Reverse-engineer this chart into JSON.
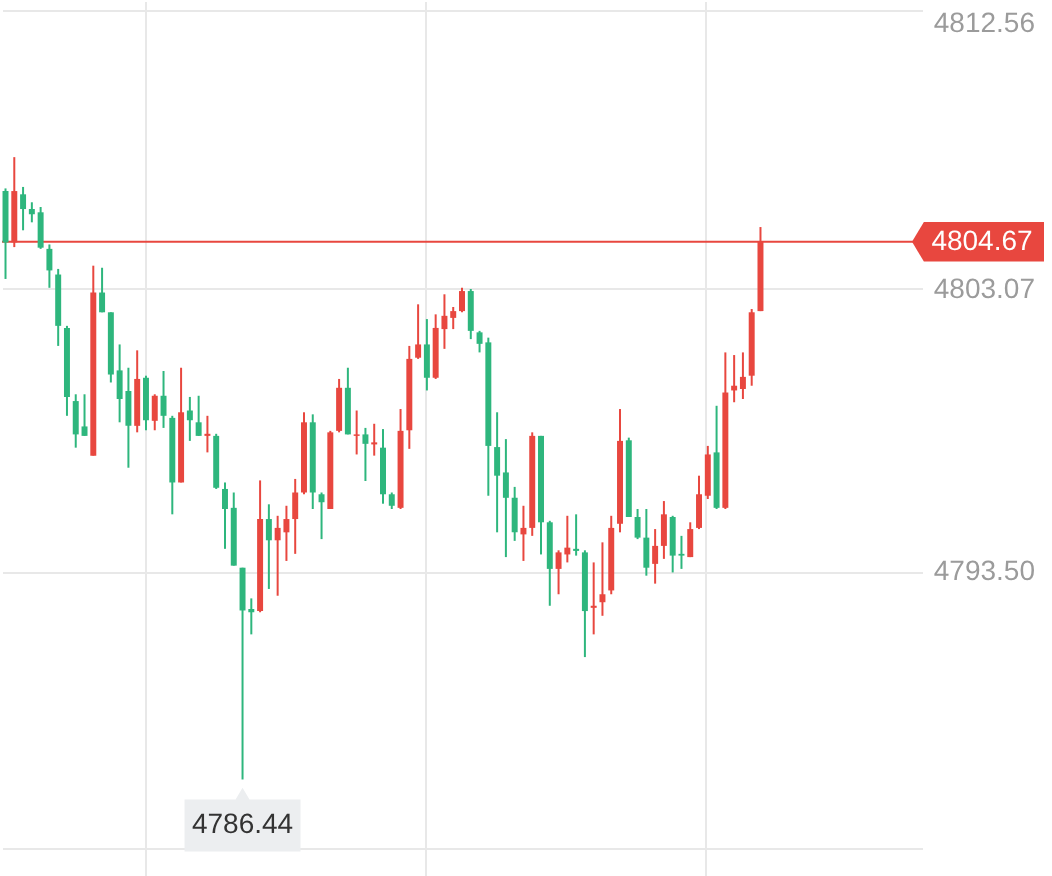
{
  "chart_data": {
    "type": "candlestick",
    "categories": [
      null,
      null,
      null,
      null,
      null,
      null,
      null,
      null,
      null,
      null,
      null,
      null,
      null,
      null,
      null,
      null,
      null,
      null,
      null,
      null,
      null,
      null,
      null,
      null,
      null,
      null,
      null,
      null,
      null,
      null,
      null,
      null,
      null,
      null,
      null,
      null,
      null,
      null,
      null,
      null,
      null,
      null,
      null,
      null,
      null,
      null,
      null,
      null,
      null,
      null,
      null,
      null,
      null,
      null,
      null,
      null,
      null,
      null,
      null,
      null,
      null,
      null,
      null,
      null,
      null,
      null,
      null,
      null,
      null,
      null,
      null,
      null,
      null,
      null,
      null,
      null,
      null,
      null,
      null,
      null,
      null,
      null,
      null,
      null,
      null,
      null,
      null,
      null,
      null,
      null,
      null,
      null,
      null,
      null,
      null,
      null,
      null,
      null,
      null,
      null,
      null,
      null,
      null,
      null,
      null
    ],
    "ohlc": [
      [
        4806.39,
        4806.48,
        4803.41,
        4804.65
      ],
      [
        4804.65,
        4807.54,
        4804.49,
        4806.39
      ],
      [
        4806.28,
        4806.53,
        4805.06,
        4805.78
      ],
      [
        4805.78,
        4806.01,
        4805.33,
        4805.6
      ],
      [
        4805.67,
        4805.85,
        4804.43,
        4804.47
      ],
      [
        4804.43,
        4804.58,
        4803.11,
        4803.7
      ],
      [
        4803.56,
        4803.75,
        4801.14,
        4801.82
      ],
      [
        4801.75,
        4801.82,
        4798.77,
        4799.41
      ],
      [
        4799.27,
        4799.5,
        4797.69,
        4798.14
      ],
      [
        4798.41,
        4799.5,
        4798.09,
        4798.09
      ],
      [
        4797.42,
        4803.86,
        4797.42,
        4802.95
      ],
      [
        4802.95,
        4803.79,
        4802.28,
        4802.28
      ],
      [
        4802.28,
        4802.28,
        4799.9,
        4800.17
      ],
      [
        4800.31,
        4801.19,
        4798.55,
        4799.34
      ],
      [
        4799.61,
        4800.4,
        4797.01,
        4798.43
      ],
      [
        4798.43,
        4800.99,
        4798.21,
        4800.02
      ],
      [
        4800.06,
        4800.13,
        4798.28,
        4798.62
      ],
      [
        4798.6,
        4799.5,
        4798.28,
        4799.45
      ],
      [
        4799.45,
        4800.29,
        4798.36,
        4798.77
      ],
      [
        4798.7,
        4798.77,
        4795.43,
        4796.51
      ],
      [
        4796.51,
        4800.4,
        4796.51,
        4798.89
      ],
      [
        4798.95,
        4799.41,
        4797.92,
        4798.62
      ],
      [
        4798.55,
        4799.45,
        4798.09,
        4798.09
      ],
      [
        4798.09,
        4798.77,
        4797.53,
        4798.16
      ],
      [
        4798.09,
        4798.16,
        4796.29,
        4796.33
      ],
      [
        4796.29,
        4796.51,
        4794.26,
        4795.61
      ],
      [
        4795.65,
        4796.17,
        4793.69,
        4793.69
      ],
      [
        4793.62,
        4793.62,
        4786.44,
        4792.17
      ],
      [
        4792.22,
        4792.58,
        4791.36,
        4792.11
      ],
      [
        4792.15,
        4796.58,
        4792.11,
        4795.27
      ],
      [
        4795.27,
        4795.77,
        4792.9,
        4794.55
      ],
      [
        4794.55,
        4795.38,
        4792.67,
        4794.97
      ],
      [
        4794.82,
        4795.72,
        4793.85,
        4795.27
      ],
      [
        4795.27,
        4796.63,
        4794.09,
        4796.17
      ],
      [
        4796.17,
        4798.89,
        4796.11,
        4798.55
      ],
      [
        4798.55,
        4798.82,
        4795.61,
        4796.17
      ],
      [
        4796.11,
        4796.17,
        4794.59,
        4795.84
      ],
      [
        4795.61,
        4798.26,
        4795.61,
        4798.21
      ],
      [
        4798.26,
        4800.02,
        4798.21,
        4799.72
      ],
      [
        4799.72,
        4800.4,
        4798.14,
        4798.14
      ],
      [
        4798.09,
        4798.95,
        4797.46,
        4798.14
      ],
      [
        4798.14,
        4798.36,
        4796.56,
        4797.82
      ],
      [
        4797.8,
        4798.5,
        4797.42,
        4797.87
      ],
      [
        4797.69,
        4798.32,
        4795.79,
        4796.11
      ],
      [
        4796.11,
        4796.17,
        4795.61,
        4795.72
      ],
      [
        4795.65,
        4799.0,
        4795.61,
        4798.26
      ],
      [
        4798.28,
        4801.14,
        4797.65,
        4800.7
      ],
      [
        4800.74,
        4802.55,
        4800.7,
        4801.19
      ],
      [
        4801.19,
        4802.05,
        4799.63,
        4800.06
      ],
      [
        4800.06,
        4802.21,
        4800.02,
        4801.75
      ],
      [
        4801.71,
        4802.89,
        4801.04,
        4802.16
      ],
      [
        4802.09,
        4802.46,
        4801.71,
        4802.32
      ],
      [
        4802.32,
        4803.11,
        4802.28,
        4803.0
      ],
      [
        4803.0,
        4803.07,
        4801.37,
        4801.65
      ],
      [
        4801.6,
        4801.65,
        4800.92,
        4801.21
      ],
      [
        4801.26,
        4801.42,
        4796.06,
        4797.75
      ],
      [
        4797.71,
        4798.89,
        4794.82,
        4796.74
      ],
      [
        4796.85,
        4797.98,
        4793.98,
        4795.99
      ],
      [
        4795.99,
        4796.36,
        4794.53,
        4794.82
      ],
      [
        4794.75,
        4795.72,
        4793.85,
        4794.97
      ],
      [
        4794.97,
        4798.21,
        4794.7,
        4798.09
      ],
      [
        4798.09,
        4798.09,
        4794.07,
        4795.16
      ],
      [
        4795.16,
        4795.21,
        4792.33,
        4793.58
      ],
      [
        4793.58,
        4794.21,
        4792.72,
        4794.14
      ],
      [
        4794.07,
        4795.38,
        4793.8,
        4794.3
      ],
      [
        4794.26,
        4795.43,
        4794.03,
        4794.19
      ],
      [
        4794.14,
        4794.21,
        4790.59,
        4792.15
      ],
      [
        4792.26,
        4793.8,
        4791.36,
        4792.33
      ],
      [
        4792.45,
        4794.48,
        4791.99,
        4792.72
      ],
      [
        4792.85,
        4795.38,
        4792.72,
        4794.97
      ],
      [
        4795.11,
        4799.0,
        4794.82,
        4797.92
      ],
      [
        4797.94,
        4798.03,
        4795.34,
        4795.34
      ],
      [
        4795.34,
        4795.61,
        4794.59,
        4794.64
      ],
      [
        4794.64,
        4795.61,
        4793.35,
        4793.62
      ],
      [
        4793.75,
        4794.93,
        4793.08,
        4794.36
      ],
      [
        4794.36,
        4795.88,
        4793.92,
        4795.43
      ],
      [
        4795.34,
        4795.38,
        4793.46,
        4794.03
      ],
      [
        4794.09,
        4794.7,
        4793.58,
        4794.03
      ],
      [
        4793.98,
        4795.16,
        4793.98,
        4794.93
      ],
      [
        4794.97,
        4796.74,
        4794.93,
        4796.11
      ],
      [
        4796.06,
        4797.75,
        4795.95,
        4797.46
      ],
      [
        4797.53,
        4799.11,
        4795.61,
        4795.65
      ],
      [
        4795.65,
        4800.92,
        4795.61,
        4799.56
      ],
      [
        4799.63,
        4800.83,
        4799.23,
        4799.79
      ],
      [
        4799.68,
        4800.92,
        4799.34,
        4800.09
      ],
      [
        4800.13,
        4802.39,
        4799.79,
        4802.28
      ],
      [
        4802.32,
        4805.17,
        4802.32,
        4804.67
      ],
      null,
      null,
      null,
      null,
      null,
      null,
      null,
      null,
      null,
      null,
      null,
      null,
      null,
      null,
      null,
      null,
      null,
      null
    ],
    "colors": [
      "#2eb67d",
      "#e8473f",
      "#2eb67d",
      "#2eb67d",
      "#2eb67d",
      "#2eb67d",
      "#2eb67d",
      "#2eb67d",
      "#2eb67d",
      "#2eb67d",
      "#e8473f",
      "#2eb67d",
      "#2eb67d",
      "#2eb67d",
      "#2eb67d",
      "#e8473f",
      "#2eb67d",
      "#e8473f",
      "#2eb67d",
      "#2eb67d",
      "#e8473f",
      "#2eb67d",
      "#2eb67d",
      "#e8473f",
      "#2eb67d",
      "#2eb67d",
      "#2eb67d",
      "#2eb67d",
      "#2eb67d",
      "#e8473f",
      "#2eb67d",
      "#e8473f",
      "#e8473f",
      "#e8473f",
      "#e8473f",
      "#2eb67d",
      "#2eb67d",
      "#e8473f",
      "#e8473f",
      "#2eb67d",
      "#e8473f",
      "#2eb67d",
      "#e8473f",
      "#2eb67d",
      "#2eb67d",
      "#e8473f",
      "#e8473f",
      "#e8473f",
      "#2eb67d",
      "#e8473f",
      "#e8473f",
      "#e8473f",
      "#e8473f",
      "#2eb67d",
      "#2eb67d",
      "#2eb67d",
      "#2eb67d",
      "#2eb67d",
      "#2eb67d",
      "#e8473f",
      "#e8473f",
      "#2eb67d",
      "#2eb67d",
      "#e8473f",
      "#e8473f",
      "#2eb67d",
      "#2eb67d",
      "#e8473f",
      "#e8473f",
      "#e8473f",
      "#e8473f",
      "#2eb67d",
      "#2eb67d",
      "#2eb67d",
      "#e8473f",
      "#e8473f",
      "#2eb67d",
      "#2eb67d",
      "#e8473f",
      "#e8473f",
      "#e8473f",
      "#2eb67d",
      "#e8473f",
      "#e8473f",
      "#e8473f",
      "#e8473f",
      "#e8473f",
      null,
      null,
      null,
      null,
      null,
      null,
      null,
      null,
      null,
      null,
      null,
      null,
      null,
      null,
      null,
      null,
      null,
      null
    ],
    "ylim": [
      4783.1,
      4812.8
    ],
    "yticks": [
      {
        "value": 4784.1,
        "label": null
      },
      {
        "value": 4793.5,
        "label": "4793.50"
      },
      4803.07,
      4812.56
    ],
    "grid": "y",
    "tick_labels": "y",
    "ref_lines": [
      {
        "axis": "y",
        "value": 4804.67,
        "label": "4804.67",
        "color": "#e8473f"
      }
    ],
    "annotations": [
      {
        "text": "4786.44",
        "y": 4786.44
      }
    ]
  }
}
